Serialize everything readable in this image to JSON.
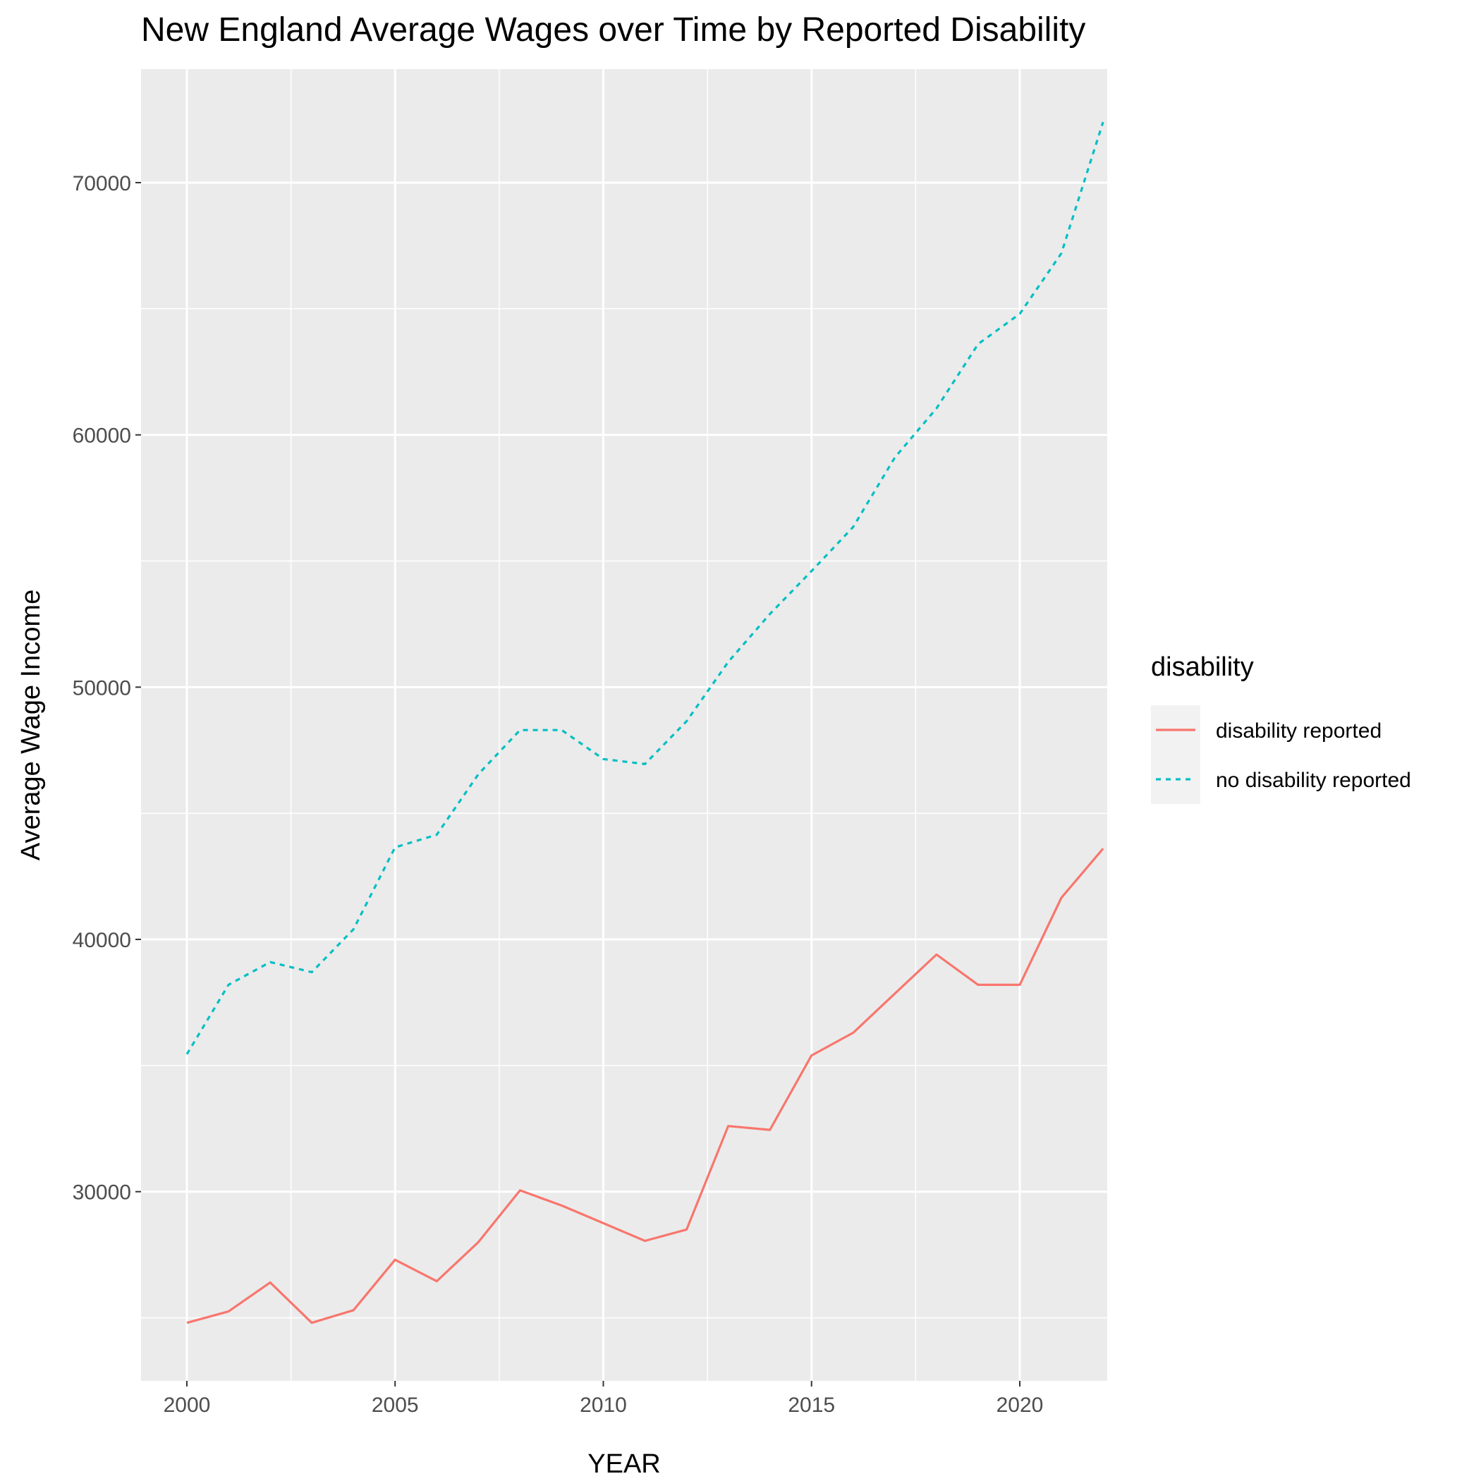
{
  "chart_data": {
    "type": "line",
    "title": "New England Average Wages over Time by Reported Disability",
    "xlabel": "YEAR",
    "ylabel": "Average Wage Income",
    "xlim": [
      1998.9,
      2022.1
    ],
    "ylim": [
      22500,
      74500
    ],
    "xticks": [
      2000,
      2005,
      2010,
      2015,
      2020
    ],
    "xtick_labels": [
      "2000",
      "2005",
      "2010",
      "2015",
      "2020"
    ],
    "yticks": [
      30000,
      40000,
      50000,
      60000,
      70000
    ],
    "ytick_labels": [
      "30000",
      "40000",
      "50000",
      "60000",
      "70000"
    ],
    "grid": true,
    "legend_position": "right",
    "legend_title": "disability",
    "x": [
      2000,
      2001,
      2002,
      2003,
      2004,
      2005,
      2006,
      2007,
      2008,
      2009,
      2010,
      2011,
      2012,
      2013,
      2014,
      2015,
      2016,
      2017,
      2018,
      2019,
      2020,
      2021,
      2022
    ],
    "series": [
      {
        "name": "disability reported",
        "color": "#F8766D",
        "linestyle": "solid",
        "values": [
          24800,
          25250,
          26400,
          24800,
          25300,
          27300,
          26450,
          28000,
          30050,
          29450,
          28750,
          28050,
          28500,
          32600,
          32450,
          35400,
          36300,
          37850,
          39400,
          38200,
          38200,
          41650,
          43600
        ]
      },
      {
        "name": "no disability reported",
        "color": "#00BFC4",
        "linestyle": "dotted",
        "values": [
          35450,
          38200,
          39100,
          38700,
          40400,
          43650,
          44150,
          46550,
          48300,
          48300,
          47150,
          46950,
          48650,
          51000,
          52900,
          54600,
          56350,
          59100,
          61050,
          63600,
          64800,
          67200,
          72400
        ]
      }
    ]
  }
}
